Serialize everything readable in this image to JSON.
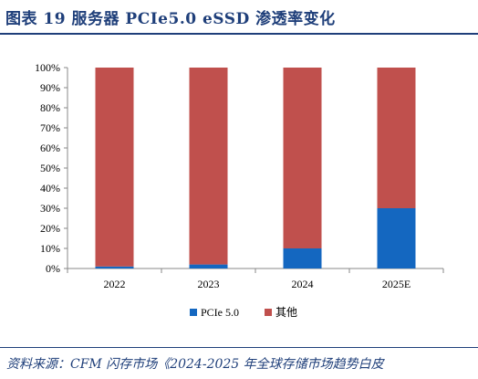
{
  "header": {
    "title": "图表 19  服务器 PCIe5.0 eSSD 渗透率变化"
  },
  "footer": {
    "source": "资料来源：CFM 闪存市场《2024-2025 年全球存储市场趋势白皮"
  },
  "chart_data": {
    "type": "bar",
    "stacked": true,
    "categories": [
      "2022",
      "2023",
      "2024",
      "2025E"
    ],
    "series": [
      {
        "name": "PCIe 5.0",
        "values": [
          1,
          2,
          10,
          30
        ],
        "color": "#1467c0"
      },
      {
        "name": "其他",
        "values": [
          99,
          98,
          90,
          70
        ],
        "color": "#c0504d"
      }
    ],
    "ylim": [
      0,
      100
    ],
    "yticks": [
      "0%",
      "10%",
      "20%",
      "30%",
      "40%",
      "50%",
      "60%",
      "70%",
      "80%",
      "90%",
      "100%"
    ],
    "grid": false,
    "legend_position": "bottom-center"
  }
}
